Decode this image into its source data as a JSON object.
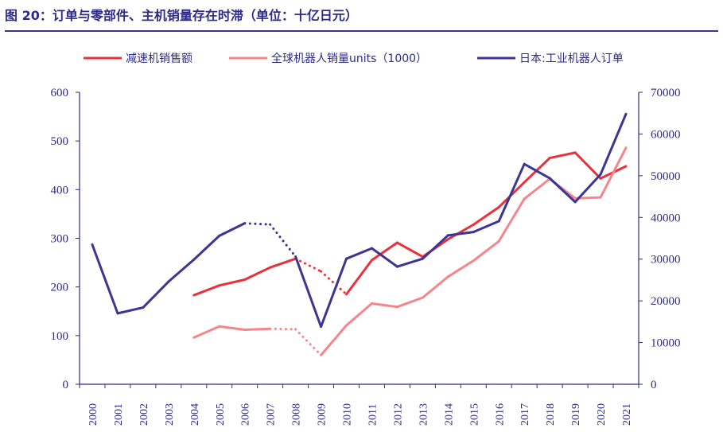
{
  "chart_data": {
    "type": "line",
    "title": "图 20：订单与零部件、主机销量存在时滞（单位：十亿日元）",
    "xlabel": "",
    "ylabel": "",
    "x": [
      "2000",
      "2001",
      "2002",
      "2003",
      "2004",
      "2005",
      "2006",
      "2007",
      "2008",
      "2009",
      "2010",
      "2011",
      "2012",
      "2013",
      "2014",
      "2015",
      "2016",
      "2017",
      "2018",
      "2019",
      "2020",
      "2021"
    ],
    "ylim_left": [
      0,
      600
    ],
    "yticks_left": [
      0,
      100,
      200,
      300,
      400,
      500,
      600
    ],
    "ylim_right": [
      0,
      70000
    ],
    "yticks_right": [
      0,
      10000,
      20000,
      30000,
      40000,
      50000,
      60000,
      70000
    ],
    "grid": false,
    "legend_position": "top",
    "series": [
      {
        "name": "减速机销售额",
        "axis": "left",
        "color": "#e8313a",
        "values": [
          null,
          null,
          null,
          null,
          183,
          203,
          215,
          240,
          258,
          232,
          185,
          255,
          291,
          262,
          298,
          328,
          364,
          415,
          465,
          476,
          423,
          448
        ],
        "dotted_segments": [
          [
            2008,
            2010
          ]
        ]
      },
      {
        "name": "全球机器人销量units（1000）",
        "axis": "left",
        "color": "#f4858a",
        "values": [
          null,
          null,
          null,
          null,
          96,
          119,
          112,
          114,
          113,
          60,
          121,
          166,
          159,
          178,
          221,
          254,
          294,
          381,
          422,
          382,
          384,
          486
        ],
        "dotted_segments": [
          [
            2007,
            2009
          ]
        ]
      },
      {
        "name": "日本:工业机器人订单",
        "axis": "right",
        "color": "#3b3594",
        "values": [
          33500,
          17000,
          18400,
          24600,
          29900,
          35600,
          38600,
          38300,
          30600,
          13800,
          30100,
          32600,
          28200,
          30100,
          35700,
          36500,
          39100,
          52800,
          49400,
          43700,
          50300,
          64800
        ],
        "dotted_segments": [
          [
            2006,
            2008
          ]
        ]
      }
    ]
  }
}
